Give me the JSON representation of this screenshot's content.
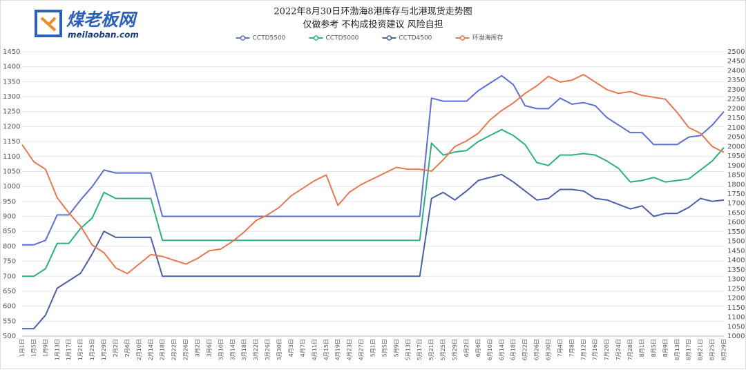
{
  "logo": {
    "name": "煤老板网",
    "url": "meilaoban.com"
  },
  "chart_data": {
    "type": "line",
    "title": "2022年8月30日环渤海8港库存与北港现货走势图",
    "subtitle": "仅做参考 不构成投资建议 风险自担",
    "legend": "top",
    "grid": true,
    "categories": [
      "1月1日",
      "1月5日",
      "1月9日",
      "1月13日",
      "1月17日",
      "1月21日",
      "1月25日",
      "1月29日",
      "2月2日",
      "2月6日",
      "2月10日",
      "2月14日",
      "2月18日",
      "2月22日",
      "2月26日",
      "3月2日",
      "3月6日",
      "3月10日",
      "3月14日",
      "3月18日",
      "3月22日",
      "3月26日",
      "3月30日",
      "4月3日",
      "4月7日",
      "4月11日",
      "4月15日",
      "4月19日",
      "4月23日",
      "4月27日",
      "5月1日",
      "5月5日",
      "5月9日",
      "5月13日",
      "5月17日",
      "5月21日",
      "5月25日",
      "5月29日",
      "6月2日",
      "6月6日",
      "6月10日",
      "6月14日",
      "6月18日",
      "6月22日",
      "6月26日",
      "6月30日",
      "7月4日",
      "7月8日",
      "7月12日",
      "7月16日",
      "7月20日",
      "7月24日",
      "7月28日",
      "8月1日",
      "8月5日",
      "8月9日",
      "8月13日",
      "8月17日",
      "8月21日",
      "8月25日",
      "8月29日"
    ],
    "ylim": [
      500,
      1450
    ],
    "yticks": [
      500,
      550,
      600,
      650,
      700,
      750,
      800,
      850,
      900,
      950,
      1000,
      1050,
      1100,
      1150,
      1200,
      1250,
      1300,
      1350,
      1400,
      1450
    ],
    "y2lim": [
      1000,
      2500
    ],
    "y2ticks": [
      1000,
      1050,
      1100,
      1150,
      1200,
      1250,
      1300,
      1350,
      1400,
      1450,
      1500,
      1550,
      1600,
      1650,
      1700,
      1750,
      1800,
      1850,
      1900,
      1950,
      2000,
      2050,
      2100,
      2150,
      2200,
      2250,
      2300,
      2350,
      2400,
      2450,
      2500
    ],
    "series": [
      {
        "name": "CCTD5500",
        "color": "#5b6fd6",
        "values": [
          805,
          805,
          820,
          905,
          905,
          955,
          1000,
          1055,
          1045,
          1045,
          1045,
          1045,
          900,
          900,
          900,
          900,
          900,
          900,
          900,
          900,
          900,
          900,
          900,
          900,
          900,
          900,
          900,
          900,
          900,
          900,
          900,
          900,
          900,
          900,
          900,
          1295,
          1285,
          1285,
          1285,
          1320,
          1345,
          1370,
          1340,
          1270,
          1260,
          1260,
          1295,
          1275,
          1280,
          1270,
          1230,
          1205,
          1180,
          1180,
          1140,
          1140,
          1140,
          1165,
          1170,
          1205,
          1250
        ]
      },
      {
        "name": "CCTD5000",
        "color": "#2bb07f",
        "values": [
          700,
          700,
          725,
          810,
          810,
          860,
          895,
          980,
          960,
          960,
          960,
          960,
          820,
          820,
          820,
          820,
          820,
          820,
          820,
          820,
          820,
          820,
          820,
          820,
          820,
          820,
          820,
          820,
          820,
          820,
          820,
          820,
          820,
          820,
          820,
          1145,
          1105,
          1115,
          1120,
          1150,
          1170,
          1190,
          1170,
          1140,
          1080,
          1070,
          1105,
          1105,
          1110,
          1105,
          1085,
          1060,
          1015,
          1020,
          1030,
          1015,
          1020,
          1025,
          1055,
          1085,
          1130
        ]
      },
      {
        "name": "CCTD4500",
        "color": "#4a5fa8",
        "values": [
          525,
          525,
          570,
          660,
          685,
          710,
          775,
          850,
          830,
          830,
          830,
          830,
          700,
          700,
          700,
          700,
          700,
          700,
          700,
          700,
          700,
          700,
          700,
          700,
          700,
          700,
          700,
          700,
          700,
          700,
          700,
          700,
          700,
          700,
          700,
          960,
          980,
          955,
          985,
          1020,
          1030,
          1040,
          1015,
          985,
          955,
          960,
          990,
          990,
          985,
          960,
          955,
          940,
          925,
          935,
          900,
          910,
          910,
          930,
          960,
          950,
          955
        ]
      },
      {
        "name": "环渤海库存",
        "color": "#e8764e",
        "axis": "y2",
        "values": [
          2010,
          1920,
          1880,
          1730,
          1650,
          1580,
          1480,
          1440,
          1360,
          1330,
          1380,
          1430,
          1420,
          1400,
          1380,
          1410,
          1450,
          1460,
          1500,
          1550,
          1610,
          1640,
          1680,
          1740,
          1780,
          1820,
          1850,
          1690,
          1760,
          1800,
          1830,
          1860,
          1890,
          1880,
          1880,
          1870,
          1930,
          2000,
          2030,
          2070,
          2140,
          2190,
          2230,
          2280,
          2320,
          2370,
          2340,
          2350,
          2380,
          2340,
          2300,
          2280,
          2290,
          2270,
          2260,
          2250,
          2180,
          2100,
          2070,
          2000,
          1970
        ]
      }
    ]
  }
}
